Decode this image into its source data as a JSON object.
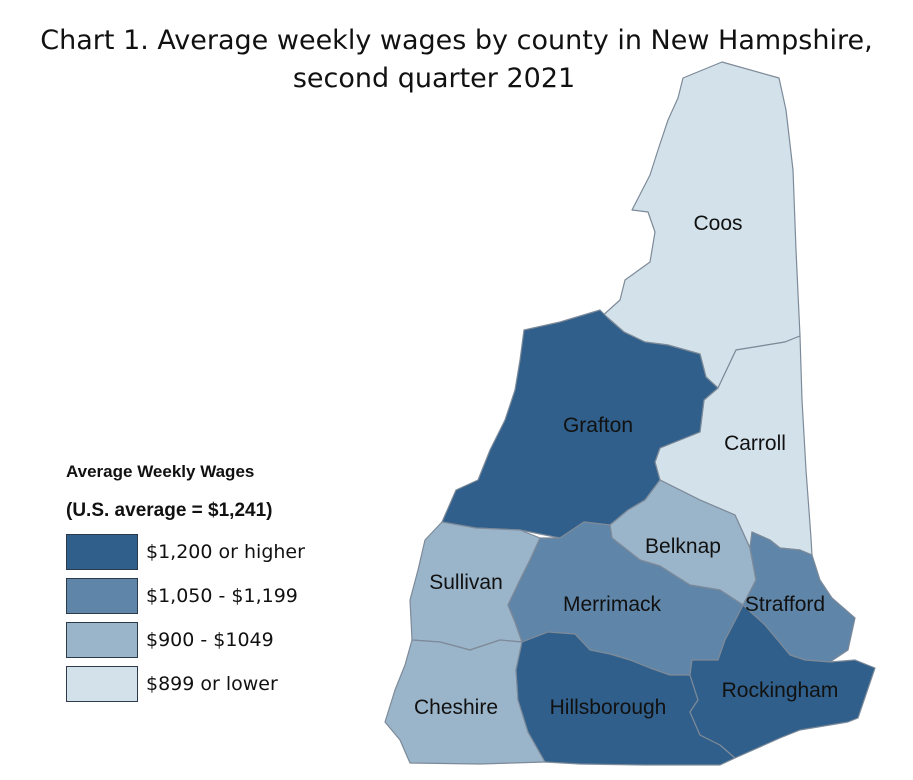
{
  "title_line1": "Chart 1. Average weekly wages by county in New Hampshire,",
  "title_line2": "second quarter 2021",
  "legend": {
    "title": "Average Weekly Wages",
    "subtitle": "(U.S. average = $1,241)",
    "items": [
      {
        "label": "$1,200 or higher",
        "color": "#2f5f8a"
      },
      {
        "label": "$1,050 - $1,199",
        "color": "#5f85a8"
      },
      {
        "label": "$900 - $1049",
        "color": "#9ab4c9"
      },
      {
        "label": "$899 or lower",
        "color": "#d3e2ea"
      }
    ]
  },
  "counties": [
    {
      "name": "Coos",
      "category": "$899 or lower"
    },
    {
      "name": "Carroll",
      "category": "$899 or lower"
    },
    {
      "name": "Grafton",
      "category": "$1,200 or higher"
    },
    {
      "name": "Belknap",
      "category": "$900 - $1049"
    },
    {
      "name": "Sullivan",
      "category": "$900 - $1049"
    },
    {
      "name": "Merrimack",
      "category": "$1,050 - $1,199"
    },
    {
      "name": "Strafford",
      "category": "$1,050 - $1,199"
    },
    {
      "name": "Cheshire",
      "category": "$900 - $1049"
    },
    {
      "name": "Hillsborough",
      "category": "$1,200 or higher"
    },
    {
      "name": "Rockingham",
      "category": "$1,200 or higher"
    }
  ]
}
